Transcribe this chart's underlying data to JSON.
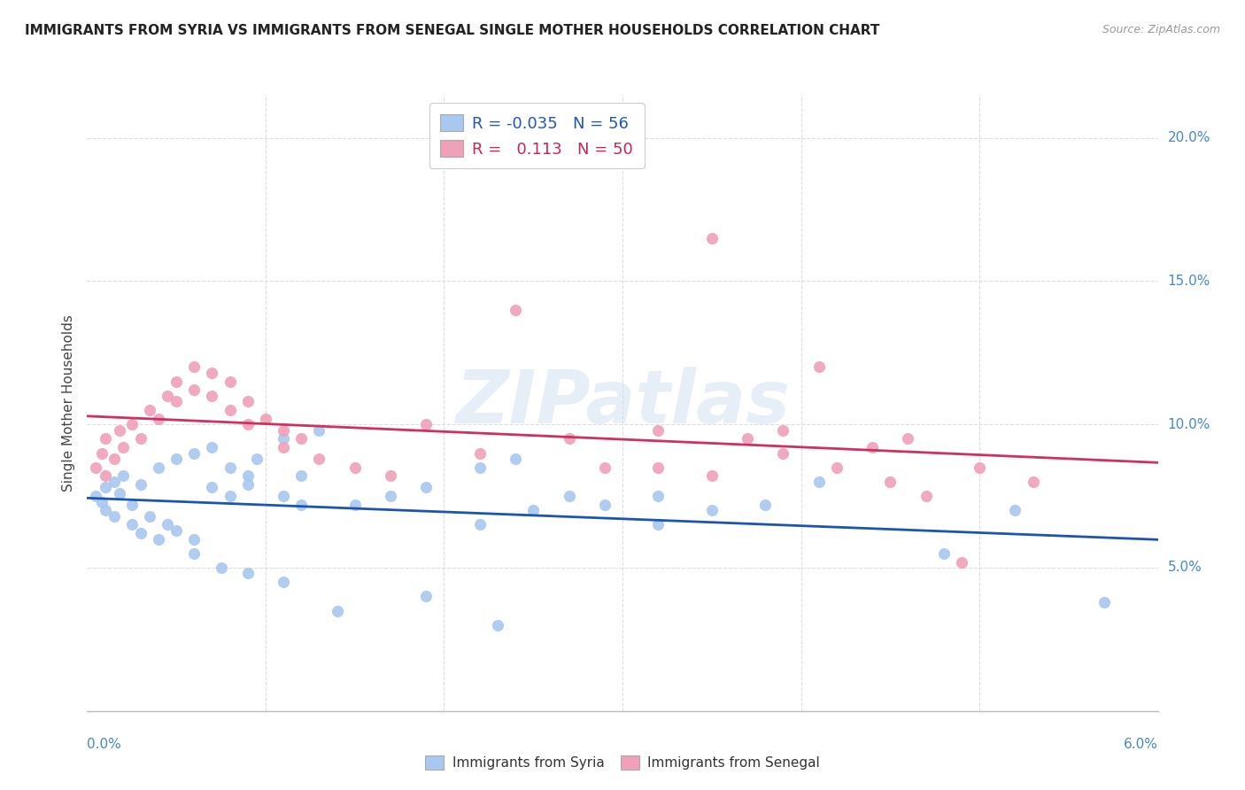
{
  "title": "IMMIGRANTS FROM SYRIA VS IMMIGRANTS FROM SENEGAL SINGLE MOTHER HOUSEHOLDS CORRELATION CHART",
  "source": "Source: ZipAtlas.com",
  "ylabel": "Single Mother Households",
  "xlim": [
    0.0,
    0.06
  ],
  "ylim": [
    0.0,
    0.215
  ],
  "yticks": [
    0.05,
    0.1,
    0.15,
    0.2
  ],
  "ytick_labels": [
    "5.0%",
    "10.0%",
    "15.0%",
    "20.0%"
  ],
  "xtick_vals": [
    0.0,
    0.01,
    0.02,
    0.03,
    0.04,
    0.05,
    0.06
  ],
  "legend_r_syria": "-0.035",
  "legend_n_syria": "56",
  "legend_r_senegal": "0.113",
  "legend_n_senegal": "50",
  "syria_color": "#a8c8f0",
  "senegal_color": "#f0a0b8",
  "syria_line_color": "#1a56b0",
  "senegal_line_color": "#d03060",
  "bg_color": "#ffffff",
  "grid_color": "#dddddd",
  "right_axis_color": "#4488cc",
  "watermark": "ZIPatlas",
  "syria_x": [
    0.0005,
    0.001,
    0.0008,
    0.0015,
    0.001,
    0.002,
    0.0018,
    0.003,
    0.0025,
    0.004,
    0.0035,
    0.005,
    0.0045,
    0.006,
    0.005,
    0.007,
    0.006,
    0.008,
    0.007,
    0.009,
    0.008,
    0.0095,
    0.009,
    0.011,
    0.012,
    0.011,
    0.013,
    0.012,
    0.015,
    0.017,
    0.019,
    0.022,
    0.024,
    0.022,
    0.027,
    0.025,
    0.029,
    0.032,
    0.035,
    0.038,
    0.032,
    0.041,
    0.048,
    0.052,
    0.057,
    0.0015,
    0.0025,
    0.003,
    0.004,
    0.006,
    0.0075,
    0.009,
    0.011,
    0.014,
    0.019,
    0.023
  ],
  "syria_y": [
    0.075,
    0.078,
    0.073,
    0.08,
    0.07,
    0.082,
    0.076,
    0.079,
    0.072,
    0.085,
    0.068,
    0.088,
    0.065,
    0.09,
    0.063,
    0.092,
    0.06,
    0.085,
    0.078,
    0.082,
    0.075,
    0.088,
    0.079,
    0.075,
    0.072,
    0.095,
    0.098,
    0.082,
    0.072,
    0.075,
    0.078,
    0.085,
    0.088,
    0.065,
    0.075,
    0.07,
    0.072,
    0.075,
    0.07,
    0.072,
    0.065,
    0.08,
    0.055,
    0.07,
    0.038,
    0.068,
    0.065,
    0.062,
    0.06,
    0.055,
    0.05,
    0.048,
    0.045,
    0.035,
    0.04,
    0.03
  ],
  "senegal_x": [
    0.0005,
    0.001,
    0.0008,
    0.0015,
    0.001,
    0.002,
    0.0018,
    0.003,
    0.0025,
    0.004,
    0.0035,
    0.005,
    0.0045,
    0.006,
    0.005,
    0.007,
    0.006,
    0.008,
    0.007,
    0.009,
    0.008,
    0.01,
    0.009,
    0.011,
    0.012,
    0.011,
    0.013,
    0.015,
    0.017,
    0.019,
    0.022,
    0.024,
    0.027,
    0.029,
    0.032,
    0.035,
    0.037,
    0.039,
    0.041,
    0.044,
    0.046,
    0.049,
    0.032,
    0.035,
    0.039,
    0.042,
    0.045,
    0.047,
    0.05,
    0.053
  ],
  "senegal_y": [
    0.085,
    0.082,
    0.09,
    0.088,
    0.095,
    0.092,
    0.098,
    0.095,
    0.1,
    0.102,
    0.105,
    0.108,
    0.11,
    0.112,
    0.115,
    0.118,
    0.12,
    0.115,
    0.11,
    0.108,
    0.105,
    0.102,
    0.1,
    0.098,
    0.095,
    0.092,
    0.088,
    0.085,
    0.082,
    0.1,
    0.09,
    0.14,
    0.095,
    0.085,
    0.098,
    0.165,
    0.095,
    0.098,
    0.12,
    0.092,
    0.095,
    0.052,
    0.085,
    0.082,
    0.09,
    0.085,
    0.08,
    0.075,
    0.085,
    0.08
  ]
}
